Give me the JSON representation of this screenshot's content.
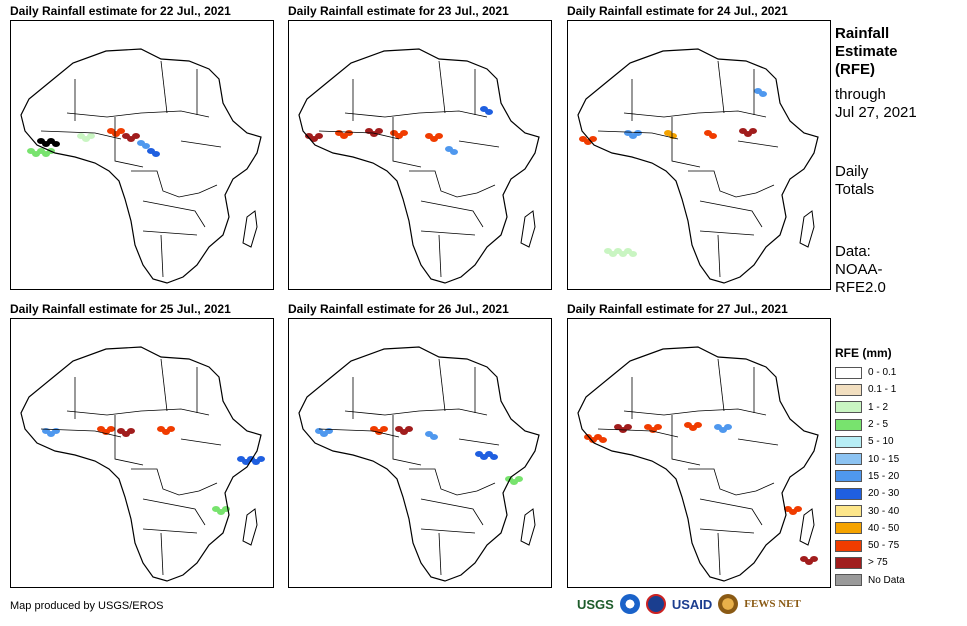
{
  "panels": [
    {
      "title": "Daily Rainfall estimate for 22 Jul., 2021"
    },
    {
      "title": "Daily Rainfall estimate for 23 Jul., 2021"
    },
    {
      "title": "Daily Rainfall estimate for 24 Jul., 2021"
    },
    {
      "title": "Daily Rainfall estimate for 25 Jul., 2021"
    },
    {
      "title": "Daily Rainfall estimate for 26 Jul., 2021"
    },
    {
      "title": "Daily Rainfall estimate for 27 Jul., 2021"
    }
  ],
  "side": {
    "heading": [
      "Rainfall",
      "Estimate",
      "(RFE)"
    ],
    "through": [
      "through",
      "Jul 27, 2021"
    ],
    "totals": [
      "Daily",
      "Totals"
    ],
    "source": [
      "Data:",
      "NOAA-",
      "RFE2.0"
    ]
  },
  "legend": {
    "title": "RFE (mm)",
    "items": [
      {
        "label": "0 - 0.1",
        "color": "#ffffff"
      },
      {
        "label": "0.1 - 1",
        "color": "#f2dfc0"
      },
      {
        "label": "1 - 2",
        "color": "#c9f5c2"
      },
      {
        "label": "2 - 5",
        "color": "#78e36e"
      },
      {
        "label": "5 - 10",
        "color": "#b7eef5"
      },
      {
        "label": "10 - 15",
        "color": "#8cc3f2"
      },
      {
        "label": "15 - 20",
        "color": "#4f98ee"
      },
      {
        "label": "20 - 30",
        "color": "#1f5fe0"
      },
      {
        "label": "30 - 40",
        "color": "#fde68a"
      },
      {
        "label": "40 - 50",
        "color": "#f5a300"
      },
      {
        "label": "50 - 75",
        "color": "#f03c00"
      },
      {
        "label": "> 75",
        "color": "#a11d1d"
      },
      {
        "label": "No Data",
        "color": "#9a9a9a"
      }
    ]
  },
  "credit": "Map produced by USGS/EROS",
  "logos": {
    "usgs": "USGS",
    "usaid": "USAID",
    "fews": "FEWS NET"
  }
}
